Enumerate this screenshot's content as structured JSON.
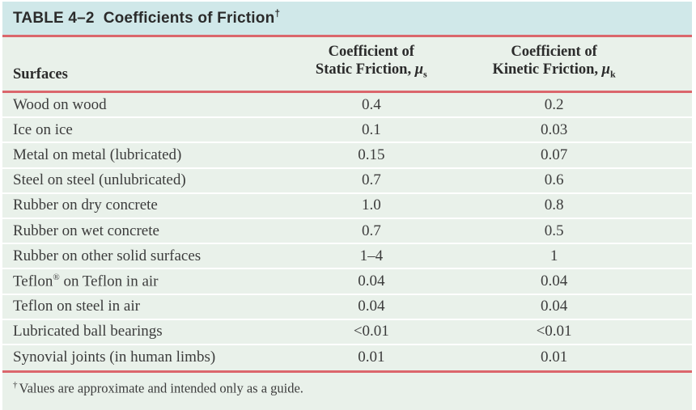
{
  "title": {
    "label": "TABLE 4–2",
    "text": "Coefficients of Friction",
    "dagger": "†"
  },
  "columns": {
    "surfaces": "Surfaces",
    "static": {
      "line1": "Coefficient of",
      "line2": "Static Friction, ",
      "symbol": "μ",
      "sub": "s"
    },
    "kinetic": {
      "line1": "Coefficient of",
      "line2": "Kinetic Friction, ",
      "symbol": "μ",
      "sub": "k"
    }
  },
  "rows": [
    {
      "surface": "Wood on wood",
      "static": "0.4",
      "kinetic": "0.2"
    },
    {
      "surface": "Ice on ice",
      "static": "0.1",
      "kinetic": "0.03"
    },
    {
      "surface": "Metal on metal (lubricated)",
      "static": "0.15",
      "kinetic": "0.07"
    },
    {
      "surface": "Steel on steel (unlubricated)",
      "static": "0.7",
      "kinetic": "0.6"
    },
    {
      "surface": "Rubber on dry concrete",
      "static": "1.0",
      "kinetic": "0.8"
    },
    {
      "surface": "Rubber on wet concrete",
      "static": "0.7",
      "kinetic": "0.5"
    },
    {
      "surface": "Rubber on other solid surfaces",
      "static": "1–4",
      "kinetic": "1"
    },
    {
      "surface": "Teflon® on Teflon in air",
      "static": "0.04",
      "kinetic": "0.04"
    },
    {
      "surface": "Teflon on steel in air",
      "static": "0.04",
      "kinetic": "0.04"
    },
    {
      "surface": "Lubricated ball bearings",
      "static": "<0.01",
      "kinetic": "<0.01"
    },
    {
      "surface": "Synovial joints (in human limbs)",
      "static": "0.01",
      "kinetic": "0.01"
    }
  ],
  "footnote": {
    "marker": "†",
    "text": "Values are approximate and intended only as a guide."
  },
  "colors": {
    "title_bar_bg": "#d0e8e9",
    "body_bg": "#e9f1ea",
    "rule_red": "#db666c",
    "row_separator": "#ffffff",
    "title_text": "#2b2b2b",
    "body_text": "#3c3c3c"
  }
}
